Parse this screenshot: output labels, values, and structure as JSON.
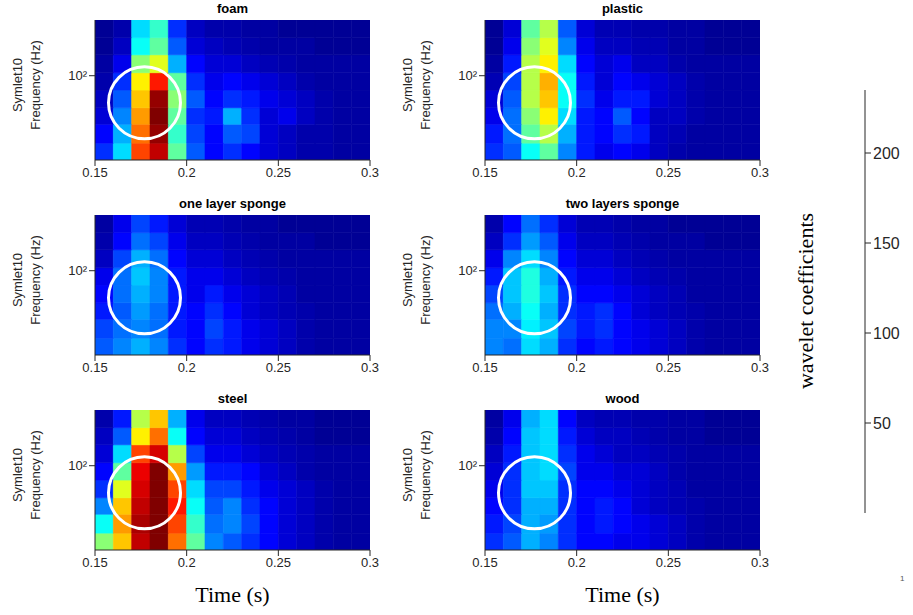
{
  "chart_data": [
    {
      "type": "heatmap",
      "title": "foam",
      "y_label": [
        "Symlet10",
        "Frequency (Hz)"
      ],
      "xlim": [
        0.15,
        0.3
      ],
      "xticks": [
        0.15,
        0.2,
        0.25,
        0.3
      ],
      "ylim": [
        25,
        250
      ],
      "yticks": [
        {
          "value": 100,
          "label": "10²"
        }
      ],
      "log": "y",
      "x_bins": [
        0.15,
        0.16,
        0.17,
        0.18,
        0.19,
        0.2,
        0.21,
        0.22,
        0.23,
        0.24,
        0.25,
        0.26,
        0.27,
        0.28,
        0.29,
        0.3
      ],
      "y_bins": [
        25,
        33,
        45,
        59,
        79,
        105,
        141,
        187,
        250
      ],
      "cells": [
        [
          40,
          80,
          190,
          220,
          110,
          50,
          30,
          40,
          30,
          20,
          15,
          10,
          10,
          8,
          8
        ],
        [
          30,
          70,
          180,
          230,
          100,
          45,
          30,
          50,
          45,
          20,
          15,
          10,
          10,
          8,
          8
        ],
        [
          20,
          60,
          170,
          235,
          110,
          40,
          35,
          70,
          40,
          20,
          25,
          15,
          10,
          8,
          8
        ],
        [
          15,
          50,
          160,
          230,
          120,
          50,
          30,
          40,
          35,
          25,
          20,
          15,
          10,
          8,
          8
        ],
        [
          10,
          40,
          150,
          200,
          110,
          40,
          25,
          30,
          25,
          20,
          15,
          10,
          8,
          8,
          8
        ],
        [
          8,
          25,
          120,
          140,
          70,
          30,
          20,
          20,
          15,
          12,
          10,
          8,
          8,
          8,
          8
        ],
        [
          5,
          15,
          90,
          110,
          50,
          20,
          15,
          12,
          10,
          8,
          8,
          8,
          5,
          5,
          5
        ],
        [
          5,
          10,
          80,
          100,
          40,
          15,
          10,
          10,
          8,
          8,
          5,
          5,
          5,
          5,
          5
        ]
      ],
      "highlight": {
        "x": 0.177,
        "y": 64
      }
    },
    {
      "type": "heatmap",
      "title": "plastic",
      "y_label": [
        "Symlet10",
        "Frequency (Hz)"
      ],
      "xlim": [
        0.15,
        0.3
      ],
      "xticks": [
        0.15,
        0.2,
        0.25,
        0.3
      ],
      "ylim": [
        25,
        250
      ],
      "yticks": [
        {
          "value": 100,
          "label": "10²"
        }
      ],
      "log": "y",
      "x_bins": [
        0.15,
        0.16,
        0.17,
        0.18,
        0.19,
        0.2,
        0.21,
        0.22,
        0.23,
        0.24,
        0.25,
        0.26,
        0.27,
        0.28,
        0.29,
        0.3
      ],
      "y_bins": [
        25,
        33,
        45,
        59,
        79,
        105,
        141,
        187,
        250
      ],
      "cells": [
        [
          40,
          50,
          90,
          110,
          60,
          35,
          25,
          30,
          25,
          15,
          10,
          8,
          8,
          8,
          8
        ],
        [
          35,
          55,
          110,
          130,
          70,
          35,
          30,
          40,
          35,
          15,
          12,
          8,
          8,
          8,
          8
        ],
        [
          25,
          55,
          120,
          150,
          80,
          35,
          30,
          50,
          30,
          15,
          15,
          10,
          8,
          8,
          8
        ],
        [
          20,
          50,
          130,
          160,
          90,
          40,
          25,
          35,
          35,
          20,
          15,
          10,
          8,
          8,
          8
        ],
        [
          12,
          45,
          130,
          165,
          90,
          35,
          20,
          30,
          25,
          20,
          15,
          10,
          8,
          8,
          8
        ],
        [
          8,
          35,
          130,
          150,
          80,
          30,
          20,
          25,
          15,
          15,
          10,
          8,
          8,
          8,
          8
        ],
        [
          5,
          25,
          120,
          140,
          60,
          25,
          15,
          15,
          12,
          12,
          8,
          8,
          5,
          5,
          5
        ],
        [
          5,
          20,
          110,
          130,
          50,
          20,
          12,
          12,
          10,
          10,
          8,
          8,
          5,
          5,
          5
        ]
      ],
      "highlight": {
        "x": 0.177,
        "y": 64
      }
    },
    {
      "type": "heatmap",
      "title": "one layer sponge",
      "y_label": [
        "Symlet10",
        "Frequency (Hz)"
      ],
      "xlim": [
        0.15,
        0.3
      ],
      "xticks": [
        0.15,
        0.2,
        0.25,
        0.3
      ],
      "ylim": [
        25,
        250
      ],
      "yticks": [
        {
          "value": 100,
          "label": "10²"
        }
      ],
      "log": "y",
      "x_bins": [
        0.15,
        0.16,
        0.17,
        0.18,
        0.19,
        0.2,
        0.21,
        0.22,
        0.23,
        0.24,
        0.25,
        0.26,
        0.27,
        0.28,
        0.29,
        0.3
      ],
      "y_bins": [
        25,
        33,
        45,
        59,
        79,
        105,
        141,
        187,
        250
      ],
      "cells": [
        [
          50,
          60,
          70,
          60,
          40,
          30,
          40,
          35,
          25,
          20,
          15,
          10,
          8,
          8,
          8
        ],
        [
          45,
          55,
          60,
          55,
          35,
          30,
          45,
          35,
          25,
          20,
          15,
          10,
          8,
          8,
          8
        ],
        [
          35,
          50,
          65,
          55,
          35,
          30,
          40,
          30,
          20,
          15,
          12,
          10,
          8,
          8,
          8
        ],
        [
          30,
          55,
          70,
          60,
          35,
          25,
          35,
          25,
          20,
          15,
          12,
          8,
          8,
          8,
          8
        ],
        [
          25,
          55,
          75,
          60,
          35,
          25,
          25,
          20,
          15,
          12,
          10,
          8,
          8,
          8,
          8
        ],
        [
          15,
          45,
          70,
          55,
          30,
          20,
          20,
          15,
          12,
          10,
          8,
          8,
          8,
          8,
          8
        ],
        [
          10,
          30,
          55,
          45,
          25,
          15,
          15,
          12,
          10,
          8,
          8,
          8,
          5,
          5,
          5
        ],
        [
          8,
          25,
          45,
          35,
          20,
          12,
          12,
          10,
          8,
          8,
          5,
          5,
          5,
          5,
          5
        ]
      ],
      "highlight": {
        "x": 0.177,
        "y": 64
      }
    },
    {
      "type": "heatmap",
      "title": "two layers sponge",
      "y_label": [
        "Symlet10",
        "Frequency (Hz)"
      ],
      "xlim": [
        0.15,
        0.3
      ],
      "xticks": [
        0.15,
        0.2,
        0.25,
        0.3
      ],
      "ylim": [
        25,
        250
      ],
      "yticks": [
        {
          "value": 100,
          "label": "10²"
        }
      ],
      "log": "y",
      "x_bins": [
        0.15,
        0.16,
        0.17,
        0.18,
        0.19,
        0.2,
        0.21,
        0.22,
        0.23,
        0.24,
        0.25,
        0.26,
        0.27,
        0.28,
        0.29,
        0.3
      ],
      "y_bins": [
        25,
        33,
        45,
        59,
        79,
        105,
        141,
        187,
        250
      ],
      "cells": [
        [
          60,
          55,
          80,
          70,
          40,
          30,
          35,
          30,
          25,
          20,
          15,
          10,
          8,
          8,
          8
        ],
        [
          60,
          60,
          85,
          75,
          45,
          35,
          40,
          30,
          25,
          20,
          15,
          10,
          8,
          8,
          8
        ],
        [
          55,
          70,
          90,
          70,
          40,
          35,
          40,
          30,
          20,
          15,
          12,
          10,
          8,
          8,
          8
        ],
        [
          45,
          75,
          95,
          75,
          40,
          30,
          30,
          25,
          20,
          15,
          12,
          8,
          8,
          8,
          8
        ],
        [
          35,
          75,
          95,
          70,
          35,
          25,
          25,
          20,
          15,
          12,
          10,
          8,
          8,
          8,
          8
        ],
        [
          25,
          60,
          80,
          60,
          30,
          20,
          20,
          15,
          12,
          10,
          8,
          8,
          8,
          8,
          8
        ],
        [
          15,
          40,
          65,
          50,
          25,
          15,
          15,
          12,
          10,
          8,
          8,
          8,
          5,
          5,
          5
        ],
        [
          10,
          30,
          55,
          40,
          20,
          12,
          12,
          10,
          8,
          8,
          5,
          5,
          5,
          5,
          5
        ]
      ],
      "highlight": {
        "x": 0.177,
        "y": 64
      }
    },
    {
      "type": "heatmap",
      "title": "steel",
      "x_label": "Time (s)",
      "y_label": [
        "Symlet10",
        "Frequency (Hz)"
      ],
      "xlim": [
        0.15,
        0.3
      ],
      "xticks": [
        0.15,
        0.2,
        0.25,
        0.3
      ],
      "ylim": [
        25,
        250
      ],
      "yticks": [
        {
          "value": 100,
          "label": "10²"
        }
      ],
      "log": "y",
      "x_bins": [
        0.15,
        0.16,
        0.17,
        0.18,
        0.19,
        0.2,
        0.21,
        0.22,
        0.23,
        0.24,
        0.25,
        0.26,
        0.27,
        0.28,
        0.29,
        0.3
      ],
      "y_bins": [
        25,
        33,
        45,
        59,
        79,
        105,
        141,
        187,
        250
      ],
      "cells": [
        [
          120,
          160,
          220,
          235,
          180,
          110,
          60,
          50,
          40,
          30,
          20,
          15,
          10,
          8,
          8
        ],
        [
          90,
          170,
          225,
          235,
          190,
          100,
          55,
          60,
          45,
          30,
          20,
          15,
          10,
          8,
          8
        ],
        [
          60,
          160,
          220,
          235,
          200,
          90,
          50,
          60,
          40,
          30,
          20,
          15,
          10,
          8,
          8
        ],
        [
          40,
          140,
          215,
          235,
          190,
          80,
          45,
          45,
          35,
          25,
          20,
          15,
          10,
          8,
          8
        ],
        [
          30,
          110,
          210,
          235,
          170,
          65,
          35,
          35,
          30,
          20,
          15,
          10,
          8,
          8,
          8
        ],
        [
          20,
          80,
          190,
          215,
          130,
          45,
          25,
          25,
          20,
          15,
          12,
          10,
          8,
          8,
          8
        ],
        [
          15,
          50,
          150,
          180,
          90,
          30,
          20,
          20,
          15,
          12,
          10,
          8,
          5,
          5,
          5
        ],
        [
          10,
          35,
          130,
          160,
          70,
          25,
          15,
          15,
          12,
          10,
          8,
          8,
          5,
          5,
          5
        ]
      ],
      "highlight": {
        "x": 0.177,
        "y": 64
      }
    },
    {
      "type": "heatmap",
      "title": "wood",
      "x_label": "Time (s)",
      "y_label": [
        "Symlet10",
        "Frequency (Hz)"
      ],
      "xlim": [
        0.15,
        0.3
      ],
      "xticks": [
        0.15,
        0.2,
        0.25,
        0.3
      ],
      "ylim": [
        25,
        250
      ],
      "yticks": [
        {
          "value": 100,
          "label": "10²"
        }
      ],
      "log": "y",
      "x_bins": [
        0.15,
        0.16,
        0.17,
        0.18,
        0.19,
        0.2,
        0.21,
        0.22,
        0.23,
        0.24,
        0.25,
        0.26,
        0.27,
        0.28,
        0.29,
        0.3
      ],
      "y_bins": [
        25,
        33,
        45,
        59,
        79,
        105,
        141,
        187,
        250
      ],
      "cells": [
        [
          40,
          50,
          70,
          60,
          40,
          30,
          30,
          25,
          25,
          20,
          15,
          10,
          8,
          8,
          8
        ],
        [
          35,
          45,
          70,
          65,
          40,
          30,
          35,
          30,
          25,
          20,
          15,
          10,
          8,
          8,
          8
        ],
        [
          30,
          40,
          70,
          70,
          40,
          30,
          35,
          30,
          20,
          15,
          12,
          10,
          8,
          8,
          8
        ],
        [
          25,
          40,
          75,
          75,
          40,
          30,
          30,
          25,
          20,
          15,
          12,
          8,
          8,
          8,
          8
        ],
        [
          20,
          40,
          75,
          80,
          45,
          25,
          25,
          20,
          20,
          15,
          10,
          8,
          8,
          8,
          8
        ],
        [
          15,
          35,
          75,
          80,
          40,
          25,
          20,
          15,
          15,
          12,
          10,
          8,
          8,
          8,
          8
        ],
        [
          10,
          30,
          75,
          80,
          35,
          20,
          15,
          15,
          12,
          10,
          8,
          8,
          5,
          5,
          5
        ],
        [
          8,
          25,
          70,
          80,
          30,
          15,
          12,
          12,
          10,
          10,
          8,
          8,
          5,
          5,
          5
        ]
      ],
      "highlight": {
        "x": 0.177,
        "y": 64
      }
    }
  ],
  "colorbar": {
    "label": "wavelet coefficients",
    "lim": [
      0,
      235
    ],
    "ticks": [
      50,
      100,
      150,
      200
    ]
  },
  "page_mark": "1"
}
